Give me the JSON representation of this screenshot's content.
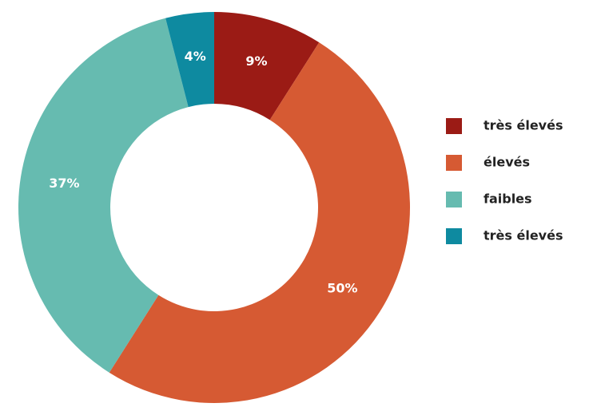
{
  "chart_data": {
    "type": "pie",
    "categories": [
      "très élevés",
      "élevés",
      "faibles",
      "très élevés"
    ],
    "values": [
      9,
      50,
      37,
      4
    ],
    "value_labels": [
      "9%",
      "50%",
      "37%",
      "4%"
    ],
    "colors": [
      "#9b1b15",
      "#d65a33",
      "#66bbb0",
      "#0e8aa0"
    ]
  }
}
